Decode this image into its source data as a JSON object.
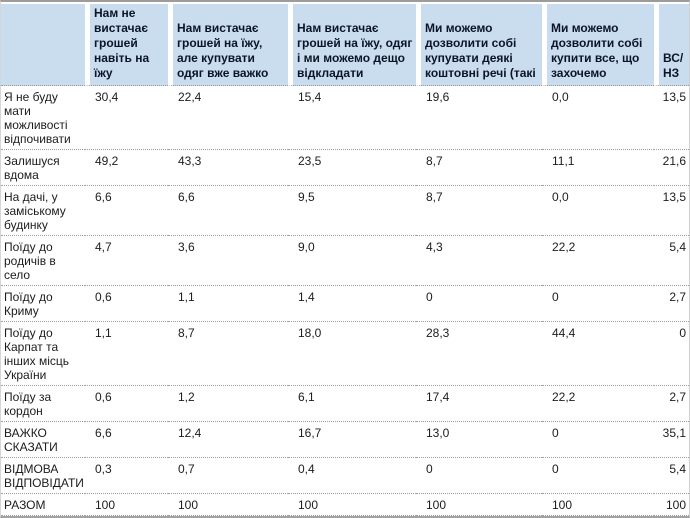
{
  "colors": {
    "header_bg": "#c9ddef",
    "header_text": "#0b1526",
    "body_text": "#1c1c1c",
    "row_divider": "#9e9e9e",
    "outer_border": "#9c9c9c"
  },
  "table": {
    "columns": [
      {
        "label": ""
      },
      {
        "label": "Нам не\nвистачає\nгрошей\nнавіть на\nїжу"
      },
      {
        "label": "Нам вистачає\nгрошей на їжу,\nале купувати\nодяг вже важко"
      },
      {
        "label": "Нам вистачає\nгрошей на їжу, одяг\nі ми можемо дещо\nвідкладати"
      },
      {
        "label": "Ми можемо\nдозволити собі\nкупувати деякі\nкоштовні речі (такі"
      },
      {
        "label": "Ми можемо\nдозволити собі\nкупити все, що\nзахочемо"
      },
      {
        "label": "ВС/\nНЗ"
      }
    ],
    "rows": [
      {
        "label": "Я не буду мати можливості відпочивати",
        "values": [
          "30,4",
          "22,4",
          "15,4",
          "19,6",
          "0,0",
          "13,5"
        ]
      },
      {
        "label": "Залишуся вдома",
        "values": [
          "49,2",
          "43,3",
          "23,5",
          "8,7",
          "11,1",
          "21,6"
        ]
      },
      {
        "label": "На дачі, у заміському будинку",
        "values": [
          "6,6",
          "6,6",
          "9,5",
          "8,7",
          "0,0",
          "13,5"
        ]
      },
      {
        "label": "Поїду до родичів в село",
        "values": [
          "4,7",
          "3,6",
          "9,0",
          "4,3",
          "22,2",
          "5,4"
        ]
      },
      {
        "label": "Поїду до Криму",
        "values": [
          "0,6",
          "1,1",
          "1,4",
          "0",
          "0",
          "2,7"
        ]
      },
      {
        "label": "Поїду до Карпат та інших місць України",
        "values": [
          "1,1",
          "8,7",
          "18,0",
          "28,3",
          "44,4",
          "0"
        ]
      },
      {
        "label": "Поїду за кордон",
        "values": [
          "0,6",
          "1,2",
          "6,1",
          "17,4",
          "22,2",
          "2,7"
        ]
      },
      {
        "label": "ВАЖКО СКАЗАТИ",
        "values": [
          "6,6",
          "12,4",
          "16,7",
          "13,0",
          "0",
          "35,1"
        ]
      },
      {
        "label": "ВІДМОВА ВІДПОВІДАТИ",
        "values": [
          "0,3",
          "0,7",
          "0,4",
          "0",
          "0",
          "5,4"
        ]
      },
      {
        "label": "РАЗОМ",
        "values": [
          "100",
          "100",
          "100",
          "100",
          "100",
          "100"
        ]
      }
    ]
  },
  "chart_data": {
    "type": "table",
    "title": "",
    "columns": [
      "Нам не вистачає грошей навіть на їжу",
      "Нам вистачає грошей на їжу, але купувати одяг вже важко",
      "Нам вистачає грошей на їжу, одяг і ми можемо дещо відкладати",
      "Ми можемо дозволити собі купувати деякі коштовні речі (такі",
      "Ми можемо дозволити собі купити все, що захочемо",
      "ВС/НЗ"
    ],
    "row_labels": [
      "Я не буду мати можливості відпочивати",
      "Залишуся вдома",
      "На дачі, у заміському будинку",
      "Поїду до родичів в село",
      "Поїду до Криму",
      "Поїду до Карпат та інших місць України",
      "Поїду за кордон",
      "ВАЖКО СКАЗАТИ",
      "ВІДМОВА ВІДПОВІДАТИ",
      "РАЗОМ"
    ],
    "values": [
      [
        30.4,
        22.4,
        15.4,
        19.6,
        0.0,
        13.5
      ],
      [
        49.2,
        43.3,
        23.5,
        8.7,
        11.1,
        21.6
      ],
      [
        6.6,
        6.6,
        9.5,
        8.7,
        0.0,
        13.5
      ],
      [
        4.7,
        3.6,
        9.0,
        4.3,
        22.2,
        5.4
      ],
      [
        0.6,
        1.1,
        1.4,
        0,
        0,
        2.7
      ],
      [
        1.1,
        8.7,
        18.0,
        28.3,
        44.4,
        0
      ],
      [
        0.6,
        1.2,
        6.1,
        17.4,
        22.2,
        2.7
      ],
      [
        6.6,
        12.4,
        16.7,
        13.0,
        0,
        35.1
      ],
      [
        0.3,
        0.7,
        0.4,
        0,
        0,
        5.4
      ],
      [
        100,
        100,
        100,
        100,
        100,
        100
      ]
    ]
  }
}
